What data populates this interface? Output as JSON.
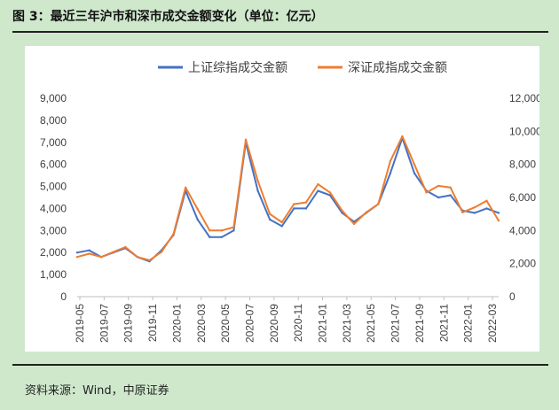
{
  "figure_title": "图 3：最近三年沪市和深市成交金额变化（单位：亿元）",
  "source_note": "资料来源：Wind，中原证券",
  "colors": {
    "series1": "#4472c4",
    "series2": "#ed7d31",
    "background": "#cfe8cc",
    "panel": "#ffffff",
    "axis": "#bfbfbf"
  },
  "chart_data": {
    "type": "line",
    "title": "",
    "grid": false,
    "legend_position": "top",
    "x_tick_labels": [
      "2019-05",
      "2019-07",
      "2019-09",
      "2019-11",
      "2020-01",
      "2020-03",
      "2020-05",
      "2020-07",
      "2020-09",
      "2020-11",
      "2021-01",
      "2021-03",
      "2021-05",
      "2021-07",
      "2021-09",
      "2021-11",
      "2022-01",
      "2022-03"
    ],
    "y_left": {
      "ylim": [
        0,
        9000
      ],
      "ticks": [
        "0",
        "1,000",
        "2,000",
        "3,000",
        "4,000",
        "5,000",
        "6,000",
        "7,000",
        "8,000",
        "9,000"
      ]
    },
    "y_right": {
      "ylim": [
        0,
        12000
      ],
      "ticks": [
        "0",
        "2,000",
        "4,000",
        "6,000",
        "8,000",
        "10,000",
        "12,000"
      ]
    },
    "x": [
      "2019-05",
      "2019-06",
      "2019-07",
      "2019-08",
      "2019-09",
      "2019-10",
      "2019-11",
      "2019-12",
      "2020-01",
      "2020-02",
      "2020-03",
      "2020-04",
      "2020-05",
      "2020-06",
      "2020-07",
      "2020-08",
      "2020-09",
      "2020-10",
      "2020-11",
      "2020-12",
      "2021-01",
      "2021-02",
      "2021-03",
      "2021-04",
      "2021-05",
      "2021-06",
      "2021-07",
      "2021-08",
      "2021-09",
      "2021-10",
      "2021-11",
      "2021-12",
      "2022-01",
      "2022-02",
      "2022-03",
      "2022-04"
    ],
    "series": [
      {
        "name": "上证综指成交金额",
        "axis": "left",
        "color": "#4472c4",
        "values": [
          2000,
          2100,
          1800,
          2000,
          2200,
          1800,
          1600,
          2100,
          2800,
          4800,
          3500,
          2700,
          2700,
          3000,
          7000,
          4800,
          3500,
          3200,
          4000,
          4000,
          4800,
          4600,
          3800,
          3400,
          3800,
          4200,
          5600,
          7200,
          5600,
          4800,
          4500,
          4600,
          3900,
          3800,
          4000,
          3800
        ]
      },
      {
        "name": "深证成指成交金额",
        "axis": "right",
        "color": "#ed7d31",
        "values": [
          2400,
          2600,
          2400,
          2700,
          3000,
          2400,
          2200,
          2700,
          3800,
          6600,
          5300,
          4000,
          4000,
          4200,
          9500,
          7000,
          5000,
          4500,
          5600,
          5700,
          6800,
          6300,
          5200,
          4400,
          5100,
          5600,
          8200,
          9700,
          8000,
          6300,
          6700,
          6600,
          5100,
          5400,
          5800,
          4600
        ]
      }
    ]
  }
}
